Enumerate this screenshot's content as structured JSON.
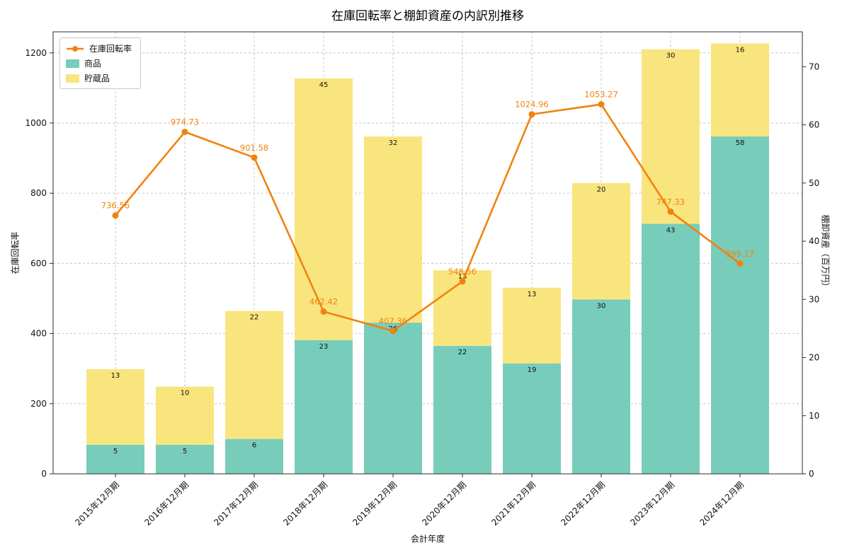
{
  "chart_data": {
    "type": "bar",
    "subtype": "stacked-bars-with-line-overlay",
    "title": "在庫回転率と棚卸資産の内訳別推移",
    "xlabel": "会計年度",
    "ylabel_left": "在庫回転率",
    "ylabel_right": "棚卸資産（百万円）",
    "categories": [
      "2015年12月期",
      "2016年12月期",
      "2017年12月期",
      "2018年12月期",
      "2019年12月期",
      "2020年12月期",
      "2021年12月期",
      "2022年12月期",
      "2023年12月期",
      "2024年12月期"
    ],
    "series": [
      {
        "name": "商品",
        "type": "bar",
        "stack": "棚卸資産",
        "axis": "right",
        "color": "#78ccba",
        "values": [
          5,
          5,
          6,
          23,
          26,
          22,
          19,
          30,
          43,
          58
        ]
      },
      {
        "name": "貯蔵品",
        "type": "bar",
        "stack": "棚卸資産",
        "axis": "right",
        "color": "#f9e57e",
        "values": [
          13,
          10,
          22,
          45,
          32,
          13,
          13,
          20,
          30,
          16
        ]
      },
      {
        "name": "在庫回転率",
        "type": "line",
        "axis": "left",
        "color": "#f0830f",
        "values": [
          736.56,
          974.73,
          901.58,
          462.42,
          407.36,
          548.56,
          1024.96,
          1053.27,
          747.33,
          599.17
        ]
      }
    ],
    "left_axis": {
      "ticks": [
        0,
        200,
        400,
        600,
        800,
        1000,
        1200
      ],
      "lim": [
        0,
        1260
      ]
    },
    "right_axis": {
      "ticks": [
        0,
        10,
        20,
        30,
        40,
        50,
        60,
        70
      ],
      "lim": [
        0,
        76
      ]
    },
    "grid": true,
    "legend": {
      "position": "upper-left",
      "labels": [
        "在庫回転率",
        "商品",
        "貯蔵品"
      ]
    }
  }
}
